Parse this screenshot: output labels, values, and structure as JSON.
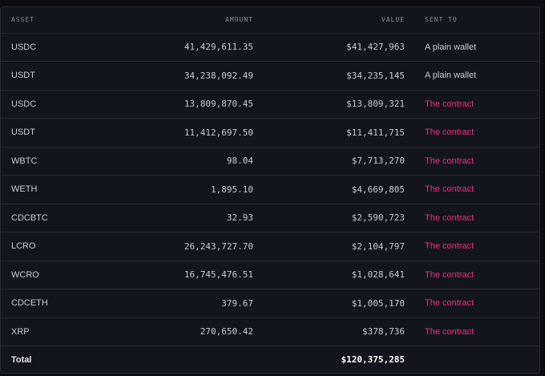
{
  "table": {
    "headers": {
      "asset": "ASSET",
      "amount": "AMOUNT",
      "value": "VALUE",
      "sent_to": "SENT TO"
    },
    "rows": [
      {
        "asset": "USDC",
        "amount": "41,429,611.35",
        "value": "$41,427,963",
        "sent_to": "A plain wallet"
      },
      {
        "asset": "USDT",
        "amount": "34,238,092.49",
        "value": "$34,235,145",
        "sent_to": "A plain wallet"
      },
      {
        "asset": "USDC",
        "amount": "13,809,870.45",
        "value": "$13,809,321",
        "sent_to": "The contract"
      },
      {
        "asset": "USDT",
        "amount": "11,412,697.50",
        "value": "$11,411,715",
        "sent_to": "The contract"
      },
      {
        "asset": "WBTC",
        "amount": "98.04",
        "value": "$7,713,270",
        "sent_to": "The contract"
      },
      {
        "asset": "WETH",
        "amount": "1,895.10",
        "value": "$4,669,805",
        "sent_to": "The contract"
      },
      {
        "asset": "CDCBTC",
        "amount": "32.93",
        "value": "$2,590,723",
        "sent_to": "The contract"
      },
      {
        "asset": "LCRO",
        "amount": "26,243,727.70",
        "value": "$2,104,797",
        "sent_to": "The contract"
      },
      {
        "asset": "WCRO",
        "amount": "16,745,476.51",
        "value": "$1,028,641",
        "sent_to": "The contract"
      },
      {
        "asset": "CDCETH",
        "amount": "379.67",
        "value": "$1,005,170",
        "sent_to": "The contract"
      },
      {
        "asset": "XRP",
        "amount": "270,650.42",
        "value": "$378,736",
        "sent_to": "The contract"
      }
    ],
    "total": {
      "label": "Total",
      "value": "$120,375,285"
    }
  },
  "colors": {
    "background": "#12151c",
    "text": "#c8ccd4",
    "header_text": "#8a8f99",
    "contract_accent": "#ef2f83",
    "divider": "#262a33"
  }
}
